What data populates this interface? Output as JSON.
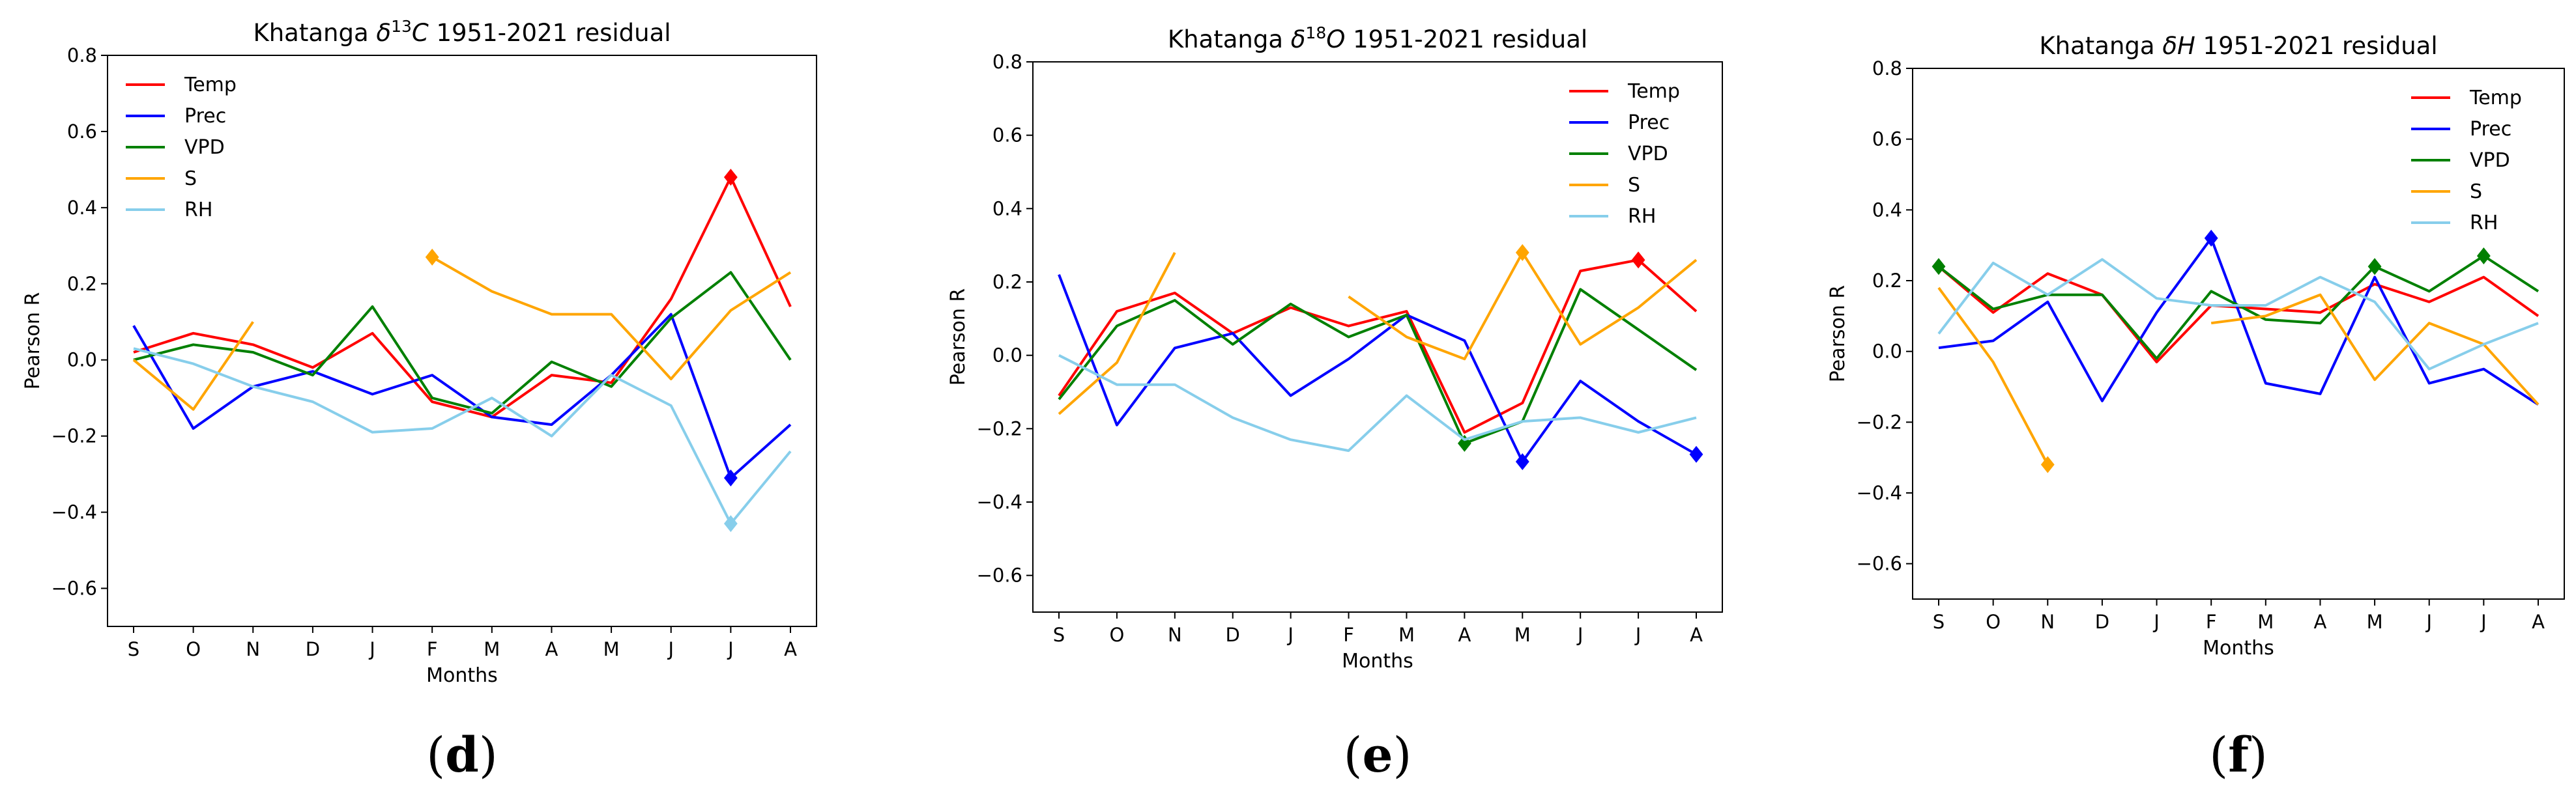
{
  "chart_data": [
    {
      "type": "line",
      "panel_label": "d",
      "title": "Khatanga δ¹³C 1951-2021 residual",
      "title_parts": {
        "prefix": "Khatanga ",
        "delta": "δ",
        "sup": "13",
        "var": "C",
        "suffix": " 1951-2021 residual"
      },
      "xlabel": "Months",
      "ylabel": "Pearson R",
      "categories": [
        "S",
        "O",
        "N",
        "D",
        "J",
        "F",
        "M",
        "A",
        "M",
        "J",
        "J",
        "A"
      ],
      "ylim": [
        -0.7,
        0.8
      ],
      "yticks": [
        -0.6,
        -0.4,
        -0.2,
        0.0,
        0.2,
        0.4,
        0.6,
        0.8
      ],
      "legend_position": "top-left",
      "series": [
        {
          "name": "Temp",
          "color": "#ff0000",
          "values": [
            0.02,
            0.07,
            0.04,
            -0.02,
            0.07,
            -0.11,
            -0.15,
            -0.04,
            -0.06,
            0.16,
            0.48,
            0.14
          ],
          "markers": [
            10
          ]
        },
        {
          "name": "Prec",
          "color": "#0000ff",
          "values": [
            0.09,
            -0.18,
            -0.07,
            -0.03,
            -0.09,
            -0.04,
            -0.15,
            -0.17,
            -0.04,
            0.12,
            -0.31,
            -0.17
          ],
          "markers": [
            10
          ]
        },
        {
          "name": "VPD",
          "color": "#008000",
          "values": [
            0.0,
            0.04,
            0.02,
            -0.04,
            0.14,
            -0.1,
            -0.14,
            -0.005,
            -0.07,
            0.11,
            0.23,
            0.0
          ],
          "markers": []
        },
        {
          "name": "S",
          "color": "#ffa500",
          "values": [
            0.0,
            -0.13,
            0.1,
            null,
            null,
            0.27,
            0.18,
            0.12,
            0.12,
            -0.05,
            0.13,
            0.23
          ],
          "markers": [
            5
          ]
        },
        {
          "name": "RH",
          "color": "#87ceeb",
          "values": [
            0.03,
            -0.01,
            -0.07,
            -0.11,
            -0.19,
            -0.18,
            -0.1,
            -0.2,
            -0.04,
            -0.12,
            -0.43,
            -0.24
          ],
          "markers": [
            10
          ]
        }
      ]
    },
    {
      "type": "line",
      "panel_label": "e",
      "title": "Khatanga δ¹⁸O 1951-2021 residual",
      "title_parts": {
        "prefix": "Khatanga ",
        "delta": "δ",
        "sup": "18",
        "var": "O",
        "suffix": " 1951-2021 residual"
      },
      "xlabel": "Months",
      "ylabel": "Pearson R",
      "categories": [
        "S",
        "O",
        "N",
        "D",
        "J",
        "F",
        "M",
        "A",
        "M",
        "J",
        "J",
        "A"
      ],
      "ylim": [
        -0.7,
        0.8
      ],
      "yticks": [
        -0.6,
        -0.4,
        -0.2,
        0.0,
        0.2,
        0.4,
        0.6,
        0.8
      ],
      "legend_position": "top-right",
      "series": [
        {
          "name": "Temp",
          "color": "#ff0000",
          "values": [
            -0.11,
            0.12,
            0.17,
            0.06,
            0.13,
            0.08,
            0.12,
            -0.21,
            -0.13,
            0.23,
            0.26,
            0.12
          ],
          "markers": [
            10
          ]
        },
        {
          "name": "Prec",
          "color": "#0000ff",
          "values": [
            0.22,
            -0.19,
            0.02,
            0.06,
            -0.11,
            -0.01,
            0.11,
            0.04,
            -0.29,
            -0.07,
            -0.18,
            -0.27
          ],
          "markers": [
            8,
            11
          ]
        },
        {
          "name": "VPD",
          "color": "#008000",
          "values": [
            -0.12,
            0.08,
            0.15,
            0.03,
            0.14,
            0.05,
            0.11,
            -0.24,
            -0.18,
            0.18,
            0.07,
            -0.04
          ],
          "markers": [
            7
          ]
        },
        {
          "name": "S",
          "color": "#ffa500",
          "values": [
            -0.16,
            -0.02,
            0.28,
            null,
            null,
            0.16,
            0.05,
            -0.01,
            0.28,
            0.03,
            0.13,
            0.26
          ],
          "markers": [
            8
          ]
        },
        {
          "name": "RH",
          "color": "#87ceeb",
          "values": [
            0.0,
            -0.08,
            -0.08,
            -0.17,
            -0.23,
            -0.26,
            -0.11,
            -0.23,
            -0.18,
            -0.17,
            -0.21,
            -0.17
          ],
          "markers": []
        }
      ]
    },
    {
      "type": "line",
      "panel_label": "f",
      "title": "Khatanga δH 1951-2021 residual",
      "title_parts": {
        "prefix": "Khatanga ",
        "delta": "δ",
        "sup": "",
        "var": "H",
        "suffix": " 1951-2021 residual"
      },
      "xlabel": "Months",
      "ylabel": "Pearson R",
      "categories": [
        "S",
        "O",
        "N",
        "D",
        "J",
        "F",
        "M",
        "A",
        "M",
        "J",
        "J",
        "A"
      ],
      "ylim": [
        -0.7,
        0.8
      ],
      "yticks": [
        -0.6,
        -0.4,
        -0.2,
        0.0,
        0.2,
        0.4,
        0.6,
        0.8
      ],
      "legend_position": "top-right",
      "series": [
        {
          "name": "Temp",
          "color": "#ff0000",
          "values": [
            0.24,
            0.11,
            0.22,
            0.16,
            -0.03,
            0.13,
            0.12,
            0.11,
            0.19,
            0.14,
            0.21,
            0.1
          ],
          "markers": []
        },
        {
          "name": "Prec",
          "color": "#0000ff",
          "values": [
            0.01,
            0.03,
            0.14,
            -0.14,
            0.11,
            0.32,
            -0.09,
            -0.12,
            0.21,
            -0.09,
            -0.05,
            -0.15
          ],
          "markers": [
            5
          ]
        },
        {
          "name": "VPD",
          "color": "#008000",
          "values": [
            0.24,
            0.12,
            0.16,
            0.16,
            -0.02,
            0.17,
            0.09,
            0.08,
            0.24,
            0.17,
            0.27,
            0.17
          ],
          "markers": [
            0,
            8,
            10
          ]
        },
        {
          "name": "S",
          "color": "#ffa500",
          "values": [
            0.18,
            -0.03,
            -0.32,
            null,
            null,
            0.08,
            0.1,
            0.16,
            -0.08,
            0.08,
            0.02,
            -0.15
          ],
          "markers": [
            2
          ]
        },
        {
          "name": "RH",
          "color": "#87ceeb",
          "values": [
            0.05,
            0.25,
            0.16,
            0.26,
            0.15,
            0.13,
            0.13,
            0.21,
            0.14,
            -0.05,
            0.02,
            0.08
          ],
          "markers": []
        }
      ]
    }
  ]
}
